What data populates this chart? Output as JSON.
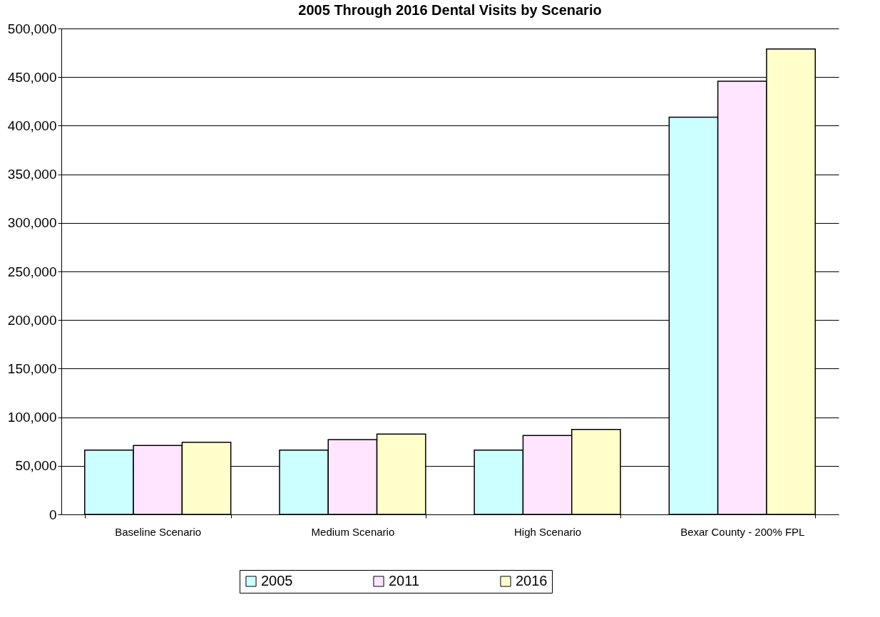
{
  "chart_data": {
    "type": "bar",
    "title": "2005 Through 2016 Dental Visits by Scenario",
    "categories": [
      "Baseline Scenario",
      "Medium Scenario",
      "High Scenario",
      "Bexar County - 200% FPL"
    ],
    "series": [
      {
        "name": "2005",
        "color": "#ccffff",
        "values": [
          66200,
          66200,
          66200,
          408800
        ]
      },
      {
        "name": "2011",
        "color": "#ffe5ff",
        "values": [
          70900,
          77000,
          81200,
          445800
        ]
      },
      {
        "name": "2016",
        "color": "#ffffcc",
        "values": [
          74300,
          82700,
          87400,
          478900
        ]
      }
    ],
    "ylim": [
      0,
      500000
    ],
    "yticks": [
      0,
      {
        "value": 50000,
        "label": "50,000"
      },
      {
        "value": 100000,
        "label": "100,000"
      },
      {
        "value": 150000,
        "label": "150,000"
      },
      {
        "value": 200000,
        "label": "200,000"
      },
      {
        "value": 250000,
        "label": "250,000"
      },
      {
        "value": 300000,
        "label": "300,000"
      },
      {
        "value": 350000,
        "label": "350,000"
      },
      {
        "value": 400000,
        "label": "400,000"
      },
      {
        "value": 450000,
        "label": "450,000"
      },
      {
        "value": 500000,
        "label": "500,000"
      }
    ],
    "grid": "y",
    "legend": "bottom"
  }
}
